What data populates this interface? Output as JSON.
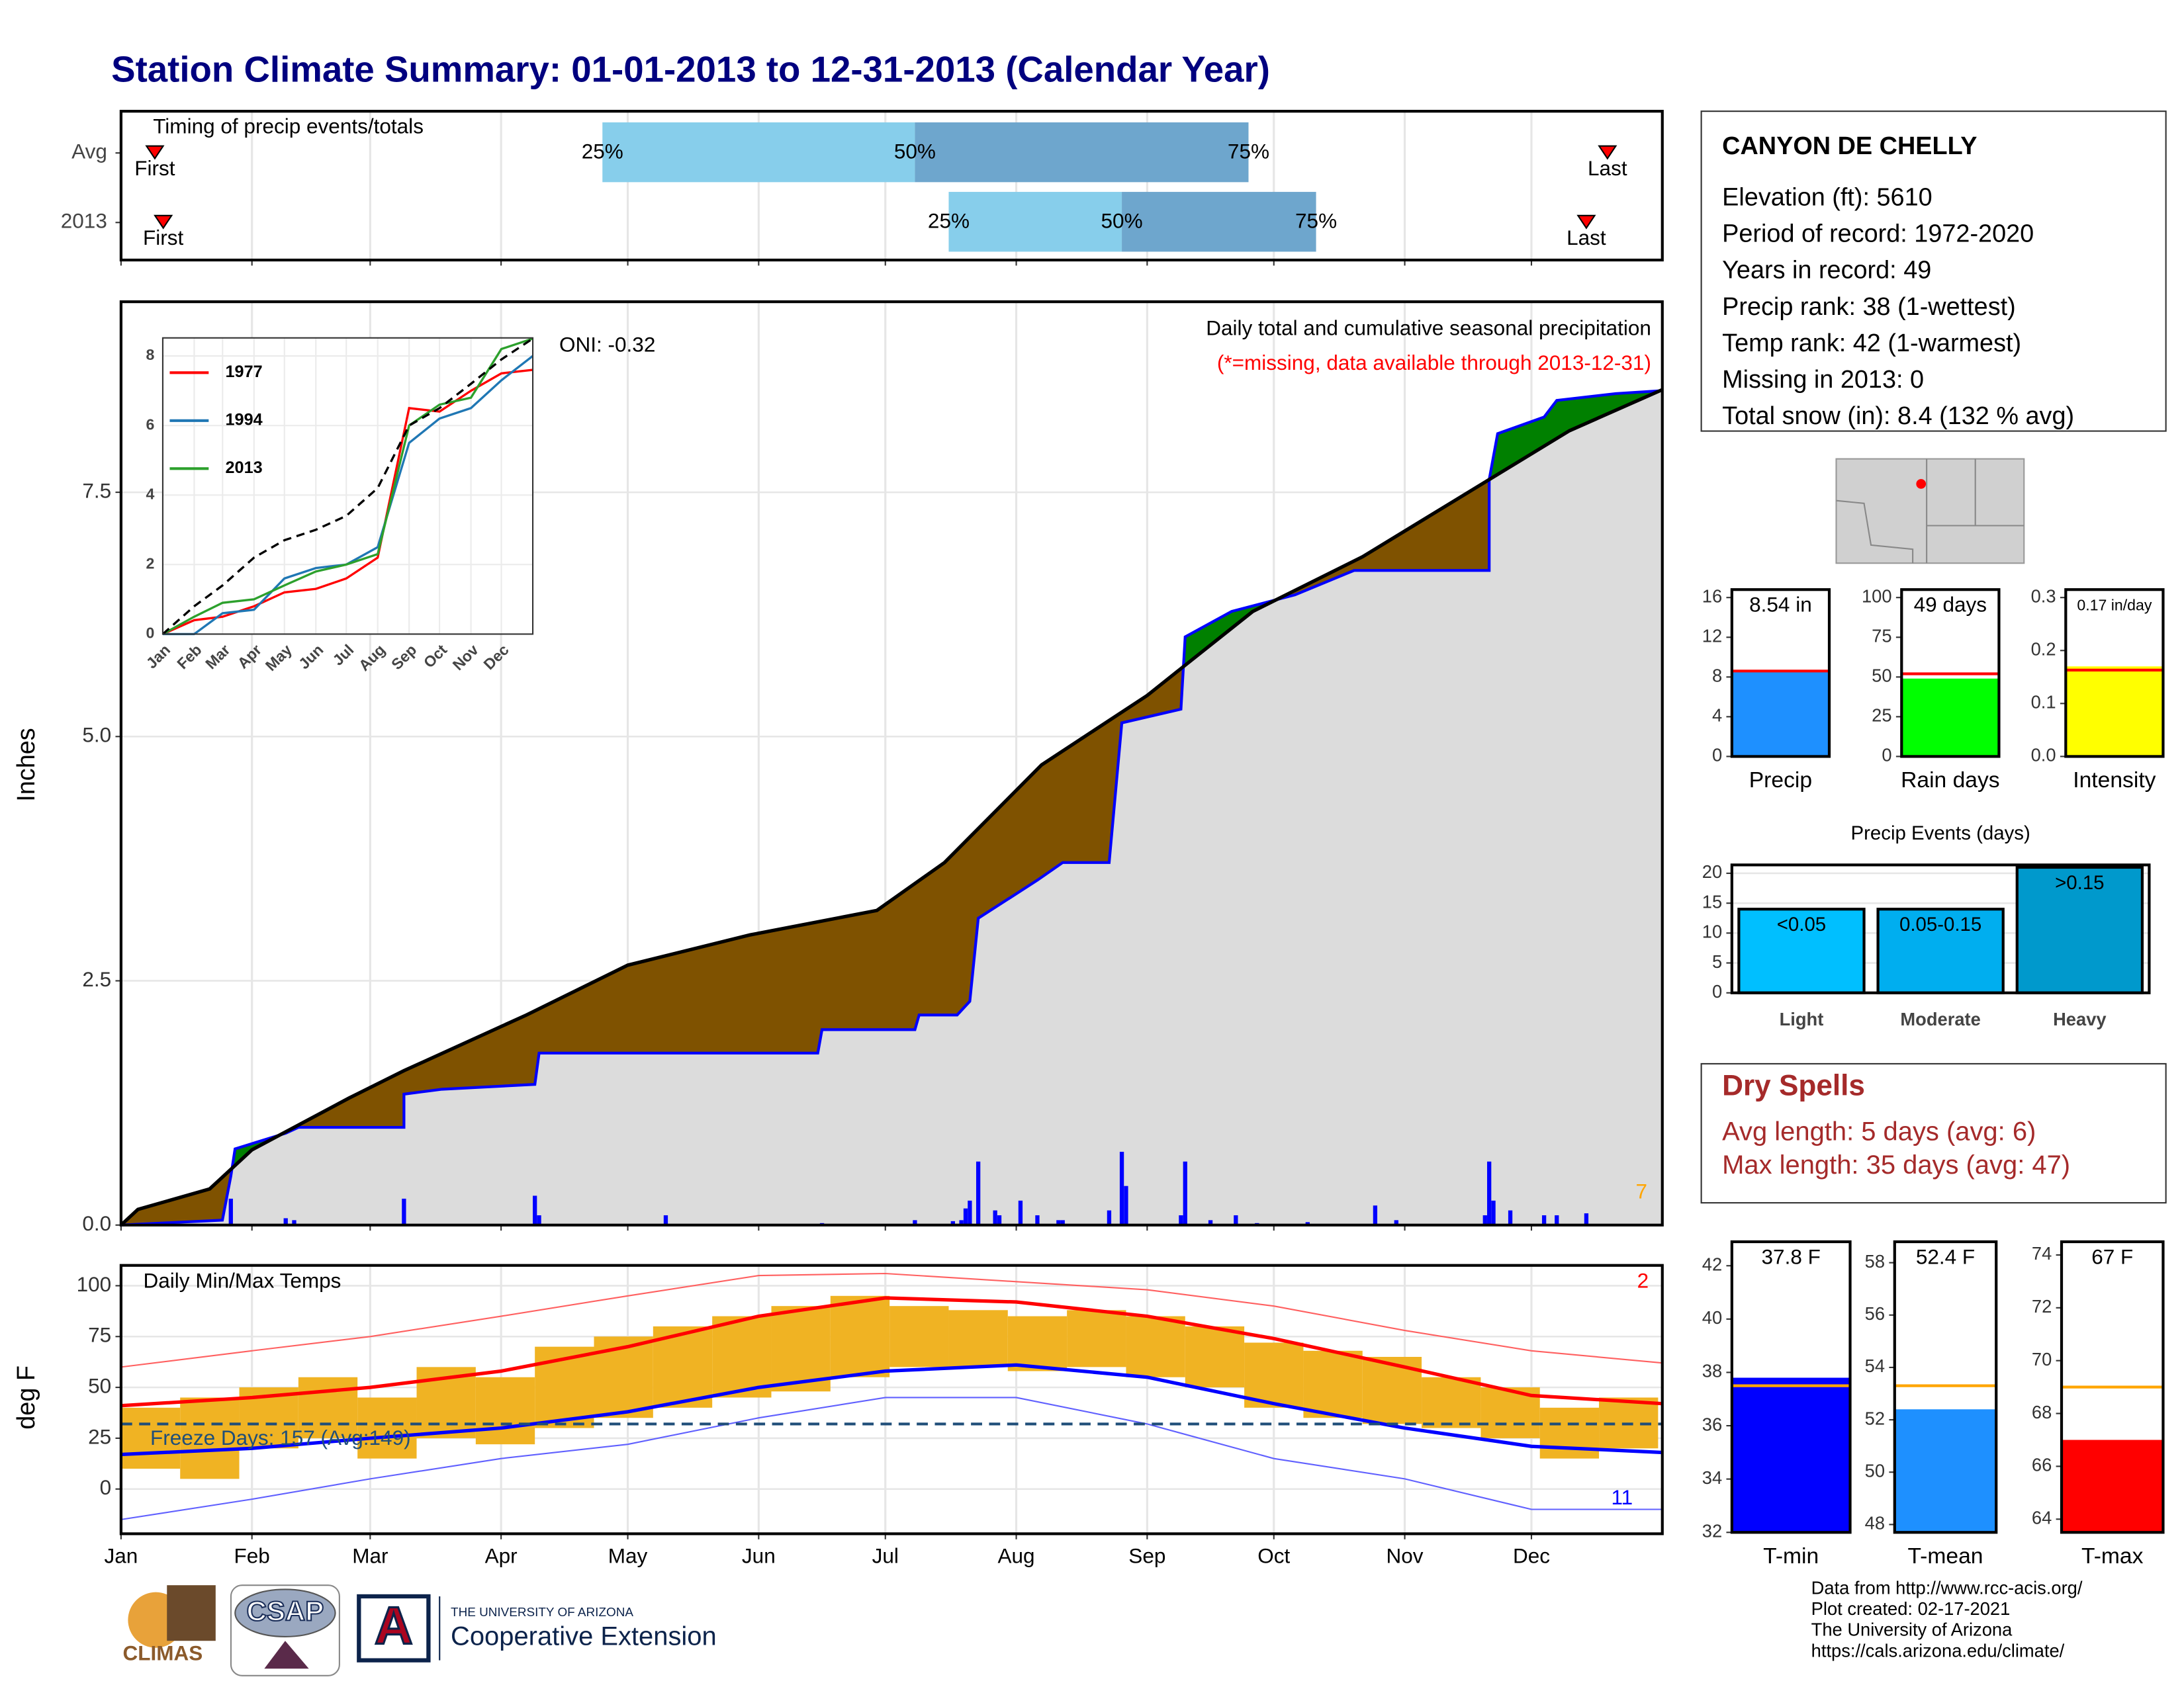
{
  "title": "Station Climate Summary: 01-01-2013 to 12-31-2013 (Calendar Year)",
  "chart_data": [
    {
      "type": "timing",
      "title": "Timing of precip events/totals",
      "xlim": [
        0,
        365
      ],
      "xticks": [
        0,
        31,
        59,
        90,
        120,
        151,
        181,
        212,
        243,
        273,
        304,
        334
      ],
      "quantile_labels": [
        "25%",
        "50%",
        "75%"
      ],
      "first_label": "First",
      "last_label": "Last",
      "colors": [
        "#87ceeb",
        "#6ea6cd"
      ],
      "marker_color": "#ff0000",
      "rows": [
        {
          "name": "Avg",
          "first": 8,
          "quartiles": [
            114,
            188,
            267
          ],
          "last": 352
        },
        {
          "name": "2013",
          "first": 10,
          "quartiles": [
            196,
            237,
            283
          ],
          "last": 347
        }
      ]
    },
    {
      "type": "cumulative",
      "title": "Daily total and cumulative seasonal precipitation",
      "note": "(*=missing, data available through 2013-12-31)",
      "annotation": "ONI: -0.32",
      "corner_label": "7",
      "ylabel": "Inches",
      "xlim": [
        0,
        365
      ],
      "ylim": [
        0,
        9.45
      ],
      "xticks": [
        0,
        31,
        59,
        90,
        120,
        151,
        181,
        212,
        243,
        273,
        304,
        334
      ],
      "yticks": [
        {
          "value": 0,
          "label": "0.0"
        },
        2.5,
        {
          "value": 5,
          "label": "5.0"
        },
        7.5
      ],
      "grid": true,
      "below_color": "#7f5200",
      "above_color": "#008000",
      "base_color": "#dcdcdc",
      "series": [
        {
          "color": "#0000ff",
          "x": [
            0,
            24,
            26,
            27,
            39,
            42,
            67,
            67,
            76,
            98,
            99,
            165,
            166,
            188,
            189,
            198,
            201,
            203,
            217,
            223,
            234,
            237,
            251,
            252,
            263,
            278,
            292,
            324,
            324,
            326,
            337,
            340,
            354,
            365
          ],
          "values": [
            0,
            0.05,
            0.5,
            0.78,
            0.94,
            1.0,
            1.0,
            1.34,
            1.39,
            1.44,
            1.76,
            1.76,
            2.0,
            2.0,
            2.15,
            2.15,
            2.29,
            3.14,
            3.53,
            3.71,
            3.71,
            5.14,
            5.28,
            6.02,
            6.28,
            6.45,
            6.7,
            6.7,
            7.63,
            8.1,
            8.27,
            8.44,
            8.51,
            8.54
          ]
        },
        {
          "color": "#000000",
          "x": [
            0,
            4,
            21,
            31,
            54,
            67,
            96,
            120,
            149,
            179,
            195,
            218,
            243,
            252,
            268,
            294,
            324,
            343,
            365
          ],
          "values": [
            0,
            0.16,
            0.37,
            0.77,
            1.3,
            1.58,
            2.15,
            2.66,
            2.97,
            3.22,
            3.71,
            4.71,
            5.42,
            5.73,
            6.28,
            6.84,
            7.63,
            8.13,
            8.55
          ]
        }
      ],
      "daily": {
        "color": "#0000ff",
        "x": [
          26,
          39,
          41,
          67,
          98,
          99,
          129,
          166,
          188,
          197,
          199,
          200,
          201,
          203,
          207,
          208,
          213,
          217,
          222,
          223,
          234,
          237,
          238,
          251,
          252,
          258,
          264,
          269,
          281,
          297,
          302,
          323,
          324,
          325,
          329,
          337,
          340,
          347
        ],
        "values": [
          0.27,
          0.07,
          0.05,
          0.27,
          0.3,
          0.1,
          0.1,
          0.02,
          0.05,
          0.04,
          0.05,
          0.17,
          0.25,
          0.65,
          0.15,
          0.1,
          0.25,
          0.1,
          0.05,
          0.05,
          0.15,
          0.75,
          0.4,
          0.1,
          0.65,
          0.05,
          0.1,
          0.02,
          0.03,
          0.2,
          0.05,
          0.1,
          0.65,
          0.25,
          0.15,
          0.1,
          0.1,
          0.12
        ]
      }
    },
    {
      "type": "line",
      "xlim": [
        0,
        365
      ],
      "ylim": [
        0,
        8.52
      ],
      "yticks": [
        0,
        2,
        4,
        6,
        8
      ],
      "xticks": [
        {
          "value": 0,
          "label": "Jan"
        },
        {
          "value": 31,
          "label": "Feb"
        },
        {
          "value": 59,
          "label": "Mar"
        },
        {
          "value": 90,
          "label": "Apr"
        },
        {
          "value": 120,
          "label": "May"
        },
        {
          "value": 151,
          "label": "Jun"
        },
        {
          "value": 181,
          "label": "Jul"
        },
        {
          "value": 212,
          "label": "Aug"
        },
        {
          "value": 243,
          "label": "Sep"
        },
        {
          "value": 273,
          "label": "Oct"
        },
        {
          "value": 304,
          "label": "Nov"
        },
        {
          "value": 334,
          "label": "Dec"
        }
      ],
      "x": [
        0,
        31,
        59,
        90,
        120,
        151,
        181,
        212,
        243,
        273,
        304,
        334,
        365
      ],
      "series": [
        {
          "name": "1977",
          "color": "#ff0000",
          "values": [
            0,
            0.4,
            0.5,
            0.8,
            1.2,
            1.3,
            1.6,
            2.2,
            6.5,
            6.4,
            7.0,
            7.5,
            7.6
          ]
        },
        {
          "name": "1994",
          "color": "#1f77b4",
          "values": [
            0,
            0,
            0.6,
            0.7,
            1.6,
            1.9,
            2.0,
            2.5,
            5.5,
            6.2,
            6.5,
            7.3,
            8.0
          ]
        },
        {
          "name": "2013",
          "color": "#2ca02c",
          "values": [
            0,
            0.5,
            0.9,
            1.0,
            1.4,
            1.8,
            2.0,
            2.3,
            6.0,
            6.6,
            6.8,
            8.2,
            8.5
          ]
        },
        {
          "color": "#000000",
          "dashed": true,
          "values": [
            0,
            0.8,
            1.4,
            2.2,
            2.7,
            3.0,
            3.4,
            4.2,
            6.0,
            6.5,
            7.2,
            7.9,
            8.5
          ]
        }
      ]
    },
    {
      "type": "temperature",
      "title": "Daily Min/Max Temps",
      "annotation": "Freeze Days: 157 (Avg:149)",
      "corner_labels": [
        "2",
        "11"
      ],
      "ylabel": "deg F",
      "xlim": [
        0,
        365
      ],
      "ylim": [
        -22,
        110
      ],
      "yticks": [
        0,
        25,
        50,
        75,
        100
      ],
      "grid": true,
      "xticks": [
        {
          "value": 0,
          "label": "Jan"
        },
        {
          "value": 31,
          "label": "Feb"
        },
        {
          "value": 59,
          "label": "Mar"
        },
        {
          "value": 90,
          "label": "Apr"
        },
        {
          "value": 120,
          "label": "May"
        },
        {
          "value": 151,
          "label": "Jun"
        },
        {
          "value": 181,
          "label": "Jul"
        },
        {
          "value": 212,
          "label": "Aug"
        },
        {
          "value": 243,
          "label": "Sep"
        },
        {
          "value": 273,
          "label": "Oct"
        },
        {
          "value": 304,
          "label": "Nov"
        },
        {
          "value": 334,
          "label": "Dec"
        }
      ],
      "freeze_line": 32,
      "observed": {
        "color": "#f0b323",
        "x": [
          7,
          21,
          35,
          49,
          63,
          77,
          91,
          105,
          119,
          133,
          147,
          161,
          175,
          189,
          203,
          217,
          231,
          245,
          259,
          273,
          287,
          301,
          315,
          329,
          343,
          357
        ],
        "max": [
          40,
          45,
          50,
          55,
          45,
          60,
          55,
          70,
          75,
          80,
          85,
          90,
          95,
          90,
          88,
          85,
          88,
          85,
          80,
          72,
          68,
          65,
          55,
          50,
          40,
          45
        ],
        "min": [
          10,
          5,
          20,
          25,
          15,
          25,
          22,
          30,
          35,
          40,
          45,
          48,
          55,
          60,
          60,
          58,
          60,
          55,
          50,
          40,
          35,
          32,
          30,
          25,
          15,
          20
        ]
      },
      "x": [
        0,
        31,
        59,
        90,
        120,
        151,
        181,
        212,
        243,
        273,
        304,
        334,
        365
      ],
      "series": [
        {
          "color": "#ff6060",
          "thin": true,
          "values": [
            60,
            68,
            75,
            85,
            95,
            105,
            106,
            102,
            98,
            90,
            78,
            68,
            62
          ]
        },
        {
          "color": "#6060ff",
          "thin": true,
          "values": [
            -15,
            -5,
            5,
            15,
            22,
            35,
            45,
            45,
            32,
            15,
            5,
            -10,
            -10
          ]
        },
        {
          "color": "#ff0000",
          "values": [
            41,
            45,
            50,
            58,
            70,
            85,
            94,
            92,
            85,
            74,
            60,
            46,
            42
          ]
        },
        {
          "color": "#0000ff",
          "values": [
            17,
            20,
            25,
            30,
            38,
            50,
            58,
            61,
            55,
            42,
            30,
            21,
            18
          ]
        }
      ]
    },
    {
      "type": "bar",
      "categories": [
        "Precip"
      ],
      "values": [
        8.54
      ],
      "value_labels": [
        "8.54 in"
      ],
      "average": 8.6,
      "color": "#1e90ff",
      "average_color": "#ff0000",
      "ylim": [
        0,
        16.8
      ],
      "yticks": [
        0,
        4,
        8,
        12,
        16
      ]
    },
    {
      "type": "bar",
      "categories": [
        "Rain days"
      ],
      "values": [
        49
      ],
      "value_labels": [
        "49 days"
      ],
      "average": 52,
      "color": "#00ff00",
      "average_color": "#ff0000",
      "ylim": [
        0,
        105
      ],
      "yticks": [
        0,
        25,
        50,
        75,
        100
      ]
    },
    {
      "type": "bar",
      "categories": [
        "Intensity"
      ],
      "values": [
        0.17
      ],
      "value_labels": [
        "0.17 in/day"
      ],
      "average": 0.163,
      "color": "#ffff00",
      "average_color": "#ff0000",
      "ylim": [
        0,
        0.315
      ],
      "yticks": [
        {
          "value": 0,
          "label": "0.0"
        },
        0.1,
        0.2,
        0.3
      ]
    },
    {
      "type": "bar",
      "title": "Precip Events (days)",
      "categories": [
        "Light",
        "Moderate",
        "Heavy"
      ],
      "values": [
        14,
        14,
        21
      ],
      "class_labels": [
        "<0.05",
        "0.05-0.15",
        ">0.15"
      ],
      "colors": [
        "#00bfff",
        "#00aeef",
        "#0099cc"
      ],
      "ylim": [
        0,
        21.4
      ],
      "yticks": [
        0,
        5,
        10,
        15,
        20
      ],
      "grid": true
    },
    {
      "type": "bar",
      "categories": [
        "T-min"
      ],
      "values": [
        37.8
      ],
      "value_labels": [
        "37.8 F"
      ],
      "average": 37.5,
      "color": "#0000ff",
      "average_color": "#ffa500",
      "ylim": [
        32,
        42.9
      ],
      "yticks": [
        32,
        34,
        36,
        38,
        40,
        42
      ]
    },
    {
      "type": "bar",
      "categories": [
        "T-mean"
      ],
      "values": [
        52.4
      ],
      "value_labels": [
        "52.4 F"
      ],
      "average": 53.3,
      "color": "#1e90ff",
      "average_color": "#ffa500",
      "ylim": [
        47.7,
        58.8
      ],
      "yticks": [
        48,
        50,
        52,
        54,
        56,
        58
      ]
    },
    {
      "type": "bar",
      "categories": [
        "T-max"
      ],
      "values": [
        67
      ],
      "value_labels": [
        "67 F"
      ],
      "average": 69,
      "color": "#ff0000",
      "average_color": "#ffa500",
      "ylim": [
        63.5,
        74.5
      ],
      "yticks": [
        64,
        66,
        68,
        70,
        72,
        74
      ]
    }
  ],
  "info": {
    "station": "CANYON DE CHELLY",
    "lines": [
      "Elevation (ft): 5610",
      "Period of record: 1972-2020",
      "Years in record: 49",
      "Precip rank: 38 (1-wettest)",
      "Temp rank: 42 (1-warmest)",
      "Missing in 2013: 0",
      "Total snow (in): 8.4 (132 % avg)"
    ]
  },
  "dry_spells": {
    "title": "Dry Spells",
    "lines": [
      "Avg length: 5 days (avg: 6)",
      "Max length: 35 days (avg: 47)"
    ]
  },
  "footer": {
    "lines": [
      "Data from http://www.rcc-acis.org/",
      "Plot created: 02-17-2021",
      "The University of Arizona",
      "https://cals.arizona.edu/climate/"
    ]
  },
  "logos": {
    "climas": "CLIMAS",
    "csap": "CSAP",
    "university": "THE UNIVERSITY OF ARIZONA",
    "extension": "Cooperative Extension"
  }
}
